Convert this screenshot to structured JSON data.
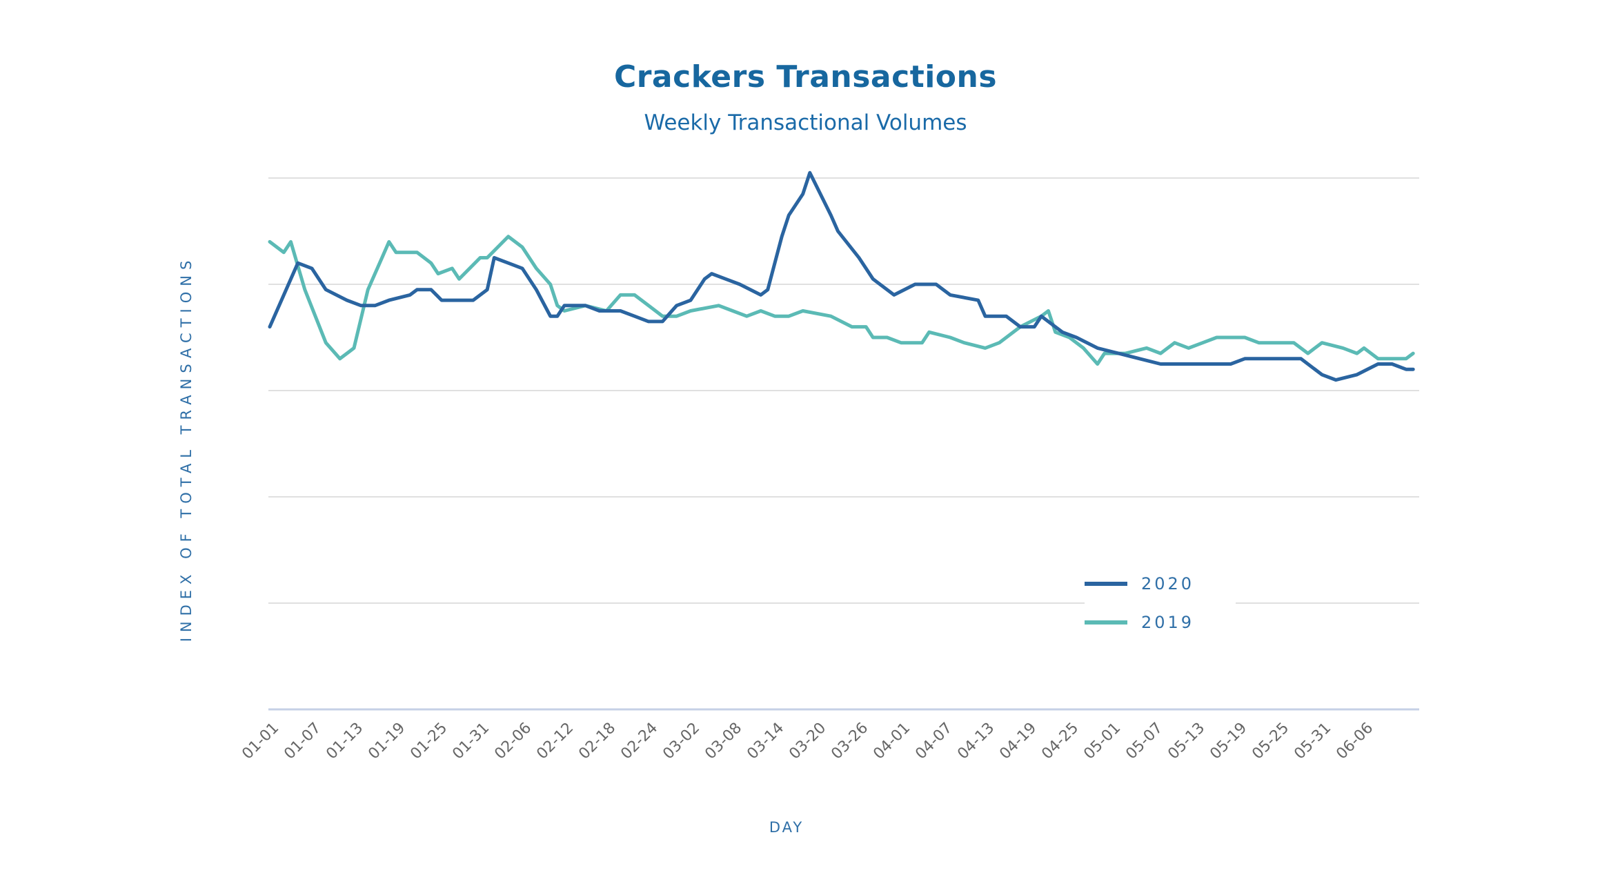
{
  "chart_data": {
    "type": "line",
    "title": "Crackers Transactions",
    "subtitle": "Weekly Transactional Volumes",
    "xlabel": "DAY",
    "ylabel": "INDEX OF TOTAL TRANSACTIONS",
    "x_tick_labels": [
      "01-01",
      "01-07",
      "01-13",
      "01-19",
      "01-25",
      "01-31",
      "02-06",
      "02-12",
      "02-18",
      "02-24",
      "03-02",
      "03-08",
      "03-14",
      "03-20",
      "03-26",
      "04-01",
      "04-07",
      "04-13",
      "04-19",
      "04-25",
      "05-01",
      "05-07",
      "05-13",
      "05-19",
      "05-25",
      "05-31",
      "06-06"
    ],
    "x_tick_step_days": 6,
    "x_range_days": [
      0,
      165
    ],
    "ylim": [
      0,
      100
    ],
    "y_gridlines": [
      0,
      20,
      40,
      60,
      80,
      100
    ],
    "y_tick_labels_shown": false,
    "grid": true,
    "legend_position": "bottom-right",
    "series": [
      {
        "name": "2020",
        "color": "#2a64a0",
        "points": [
          [
            0,
            72
          ],
          [
            4,
            84
          ],
          [
            6,
            83
          ],
          [
            8,
            79
          ],
          [
            11,
            77
          ],
          [
            13,
            76
          ],
          [
            15,
            76
          ],
          [
            17,
            77
          ],
          [
            20,
            78
          ],
          [
            21,
            79
          ],
          [
            23,
            79
          ],
          [
            24.5,
            77
          ],
          [
            26,
            77
          ],
          [
            29,
            77
          ],
          [
            31,
            79
          ],
          [
            32,
            85
          ],
          [
            34,
            84
          ],
          [
            36,
            83
          ],
          [
            38,
            79
          ],
          [
            40,
            74
          ],
          [
            41,
            74
          ],
          [
            42,
            76
          ],
          [
            45,
            76
          ],
          [
            47,
            75
          ],
          [
            50,
            75
          ],
          [
            52,
            74
          ],
          [
            54,
            73
          ],
          [
            56,
            73
          ],
          [
            58,
            76
          ],
          [
            60,
            77
          ],
          [
            62,
            81
          ],
          [
            63,
            82
          ],
          [
            65,
            81
          ],
          [
            67,
            80
          ],
          [
            70,
            78
          ],
          [
            71,
            79
          ],
          [
            73,
            89
          ],
          [
            74,
            93
          ],
          [
            76,
            97
          ],
          [
            77,
            101
          ],
          [
            80,
            93
          ],
          [
            81,
            90
          ],
          [
            84,
            85
          ],
          [
            86,
            81
          ],
          [
            89,
            78
          ],
          [
            92,
            80
          ],
          [
            95,
            80
          ],
          [
            97,
            78
          ],
          [
            101,
            77
          ],
          [
            102,
            74
          ],
          [
            105,
            74
          ],
          [
            107,
            72
          ],
          [
            109,
            72
          ],
          [
            110,
            74
          ],
          [
            113,
            71
          ],
          [
            115,
            70
          ],
          [
            118,
            68
          ],
          [
            121,
            67
          ],
          [
            124,
            66
          ],
          [
            127,
            65
          ],
          [
            129,
            65
          ],
          [
            131,
            65
          ],
          [
            133,
            65
          ],
          [
            137,
            65
          ],
          [
            139,
            66
          ],
          [
            142,
            66
          ],
          [
            144,
            66
          ],
          [
            147,
            66
          ],
          [
            150,
            63
          ],
          [
            152,
            62
          ],
          [
            155,
            63
          ],
          [
            158,
            65
          ],
          [
            160,
            65
          ],
          [
            162,
            64
          ],
          [
            163,
            64
          ]
        ]
      },
      {
        "name": "2019",
        "color": "#5bbab5",
        "points": [
          [
            0,
            88
          ],
          [
            2,
            86
          ],
          [
            3,
            88
          ],
          [
            5,
            79
          ],
          [
            8,
            69
          ],
          [
            10,
            66
          ],
          [
            12,
            68
          ],
          [
            14,
            79
          ],
          [
            16,
            85
          ],
          [
            17,
            88
          ],
          [
            18,
            86
          ],
          [
            21,
            86
          ],
          [
            23,
            84
          ],
          [
            24,
            82
          ],
          [
            26,
            83
          ],
          [
            27,
            81
          ],
          [
            30,
            85
          ],
          [
            31,
            85
          ],
          [
            34,
            89
          ],
          [
            36,
            87
          ],
          [
            38,
            83
          ],
          [
            40,
            80
          ],
          [
            41,
            76
          ],
          [
            42,
            75
          ],
          [
            45,
            76
          ],
          [
            48,
            75
          ],
          [
            50,
            78
          ],
          [
            52,
            78
          ],
          [
            54,
            76
          ],
          [
            56,
            74
          ],
          [
            58,
            74
          ],
          [
            60,
            75
          ],
          [
            64,
            76
          ],
          [
            66,
            75
          ],
          [
            68,
            74
          ],
          [
            70,
            75
          ],
          [
            72,
            74
          ],
          [
            74,
            74
          ],
          [
            76,
            75
          ],
          [
            80,
            74
          ],
          [
            83,
            72
          ],
          [
            85,
            72
          ],
          [
            86,
            70
          ],
          [
            88,
            70
          ],
          [
            90,
            69
          ],
          [
            93,
            69
          ],
          [
            94,
            71
          ],
          [
            97,
            70
          ],
          [
            99,
            69
          ],
          [
            102,
            68
          ],
          [
            104,
            69
          ],
          [
            107,
            72
          ],
          [
            110,
            74
          ],
          [
            111,
            75
          ],
          [
            112,
            71
          ],
          [
            114,
            70
          ],
          [
            116,
            68
          ],
          [
            118,
            65
          ],
          [
            119,
            67
          ],
          [
            122,
            67
          ],
          [
            125,
            68
          ],
          [
            127,
            67
          ],
          [
            129,
            69
          ],
          [
            131,
            68
          ],
          [
            133,
            69
          ],
          [
            135,
            70
          ],
          [
            138,
            70
          ],
          [
            139,
            70
          ],
          [
            141,
            69
          ],
          [
            144,
            69
          ],
          [
            146,
            69
          ],
          [
            148,
            67
          ],
          [
            150,
            69
          ],
          [
            153,
            68
          ],
          [
            155,
            67
          ],
          [
            156,
            68
          ],
          [
            158,
            66
          ],
          [
            161,
            66
          ],
          [
            162,
            66
          ],
          [
            163,
            67
          ]
        ]
      }
    ]
  }
}
